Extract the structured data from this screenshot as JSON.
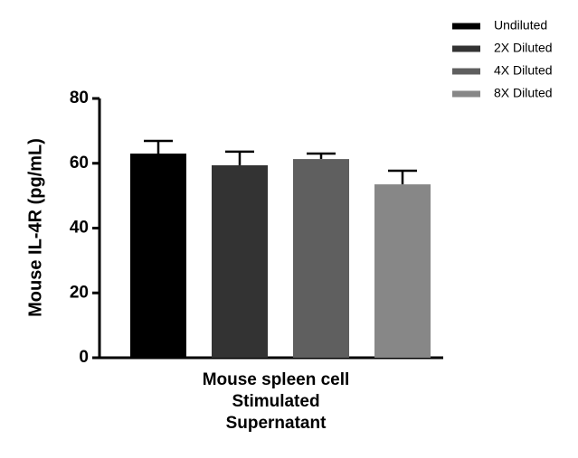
{
  "chart_data": {
    "type": "bar",
    "ylabel": "Mouse IL-4R (pg/mL)",
    "categories": [
      "Mouse spleen cell\nStimulated\nSupernatant"
    ],
    "series": [
      {
        "name": "Undiluted",
        "color": "#000000",
        "values": [
          63.0
        ],
        "errors": [
          3.9
        ]
      },
      {
        "name": "2X Diluted",
        "color": "#333333",
        "values": [
          59.4
        ],
        "errors": [
          4.2
        ]
      },
      {
        "name": "4X Diluted",
        "color": "#5f5f5f",
        "values": [
          61.3
        ],
        "errors": [
          1.7
        ]
      },
      {
        "name": "8X Diluted",
        "color": "#878787",
        "values": [
          53.5
        ],
        "errors": [
          4.2
        ]
      }
    ],
    "ylim": [
      0,
      80
    ],
    "yticks": [
      0,
      20,
      40,
      60,
      80
    ],
    "legend": "upper right"
  }
}
